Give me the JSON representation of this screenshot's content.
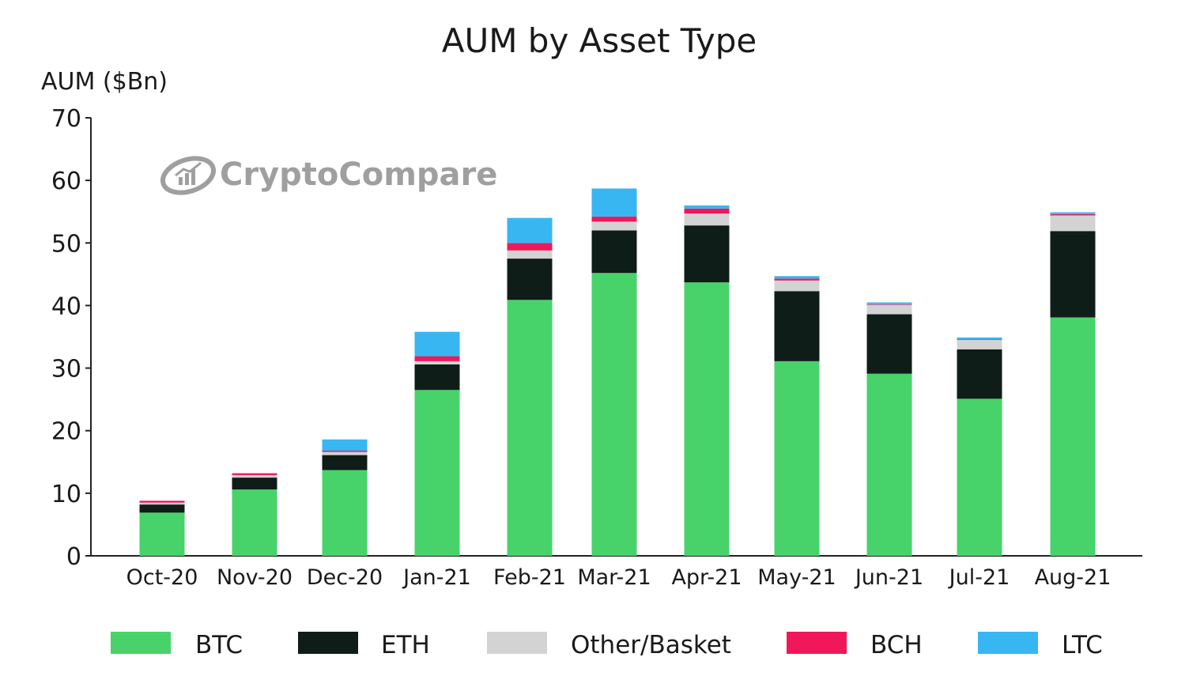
{
  "watermark": {
    "brand": "CryptoCompare",
    "icon": "chart-logo-icon"
  },
  "chart_data": {
    "type": "bar",
    "stacked": true,
    "title": "AUM by Asset Type",
    "ylabel": "AUM ($Bn)",
    "xlabel": "",
    "ylim": [
      0,
      70
    ],
    "yticks": [
      0,
      10,
      20,
      30,
      40,
      50,
      60,
      70
    ],
    "grid": false,
    "legend_position": "bottom",
    "categories": [
      "Oct-20",
      "Nov-20",
      "Dec-20",
      "Jan-21",
      "Feb-21",
      "Mar-21",
      "Apr-21",
      "May-21",
      "Jun-21",
      "Jul-21",
      "Aug-21"
    ],
    "series": [
      {
        "name": "BTC",
        "color": "#47d36a",
        "values": [
          6.9,
          10.6,
          13.7,
          26.5,
          40.9,
          45.2,
          43.7,
          31.1,
          29.1,
          25.1,
          38.1
        ]
      },
      {
        "name": "ETH",
        "color": "#0f1d18",
        "values": [
          1.3,
          1.9,
          2.4,
          4.1,
          6.6,
          6.8,
          9.1,
          11.2,
          9.5,
          7.9,
          13.8
        ]
      },
      {
        "name": "Other/Basket",
        "color": "#d3d3d3",
        "values": [
          0.3,
          0.4,
          0.5,
          0.5,
          1.3,
          1.4,
          1.9,
          1.7,
          1.5,
          1.5,
          2.5
        ]
      },
      {
        "name": "BCH",
        "color": "#f0185a",
        "values": [
          0.3,
          0.3,
          0.2,
          0.8,
          1.2,
          0.8,
          0.8,
          0.3,
          0.1,
          0.1,
          0.2
        ]
      },
      {
        "name": "LTC",
        "color": "#38b6f2",
        "values": [
          0.0,
          0.0,
          1.8,
          3.9,
          4.0,
          4.5,
          0.5,
          0.4,
          0.3,
          0.3,
          0.3
        ]
      }
    ]
  }
}
